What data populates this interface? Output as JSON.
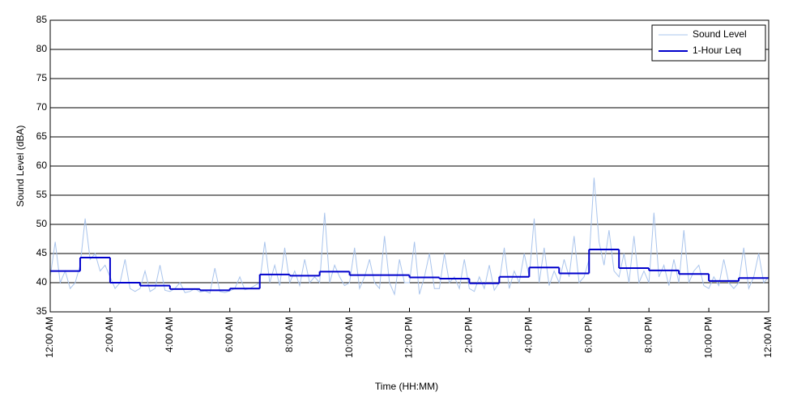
{
  "chart_data": {
    "type": "line",
    "xlabel": "Time (HH:MM)",
    "ylabel": "Sound Level (dBA)",
    "xlim": [
      0,
      1440
    ],
    "ylim": [
      35,
      85
    ],
    "yticks": [
      35,
      40,
      45,
      50,
      55,
      60,
      65,
      70,
      75,
      80,
      85
    ],
    "xticks": [
      {
        "value": 0,
        "label": "12:00 AM"
      },
      {
        "value": 120,
        "label": "2:00 AM"
      },
      {
        "value": 240,
        "label": "4:00 AM"
      },
      {
        "value": 360,
        "label": "6:00 AM"
      },
      {
        "value": 480,
        "label": "8:00 AM"
      },
      {
        "value": 600,
        "label": "10:00 AM"
      },
      {
        "value": 720,
        "label": "12:00 PM"
      },
      {
        "value": 840,
        "label": "2:00 PM"
      },
      {
        "value": 960,
        "label": "4:00 PM"
      },
      {
        "value": 1080,
        "label": "6:00 PM"
      },
      {
        "value": 1200,
        "label": "8:00 PM"
      },
      {
        "value": 1320,
        "label": "10:00 PM"
      },
      {
        "value": 1440,
        "label": "12:00 AM"
      }
    ],
    "grid": "y",
    "legend": "upper right",
    "series": [
      {
        "name": "Sound Level",
        "color": "#a9c4ec",
        "drawstyle": "default",
        "x": [
          0,
          10,
          20,
          30,
          40,
          50,
          60,
          70,
          80,
          90,
          100,
          110,
          120,
          130,
          140,
          150,
          160,
          170,
          180,
          190,
          200,
          210,
          220,
          230,
          240,
          250,
          260,
          270,
          280,
          290,
          300,
          310,
          320,
          330,
          340,
          350,
          360,
          370,
          380,
          390,
          400,
          410,
          420,
          430,
          440,
          450,
          460,
          470,
          480,
          490,
          500,
          510,
          520,
          530,
          540,
          550,
          560,
          570,
          580,
          590,
          600,
          610,
          620,
          630,
          640,
          650,
          660,
          670,
          680,
          690,
          700,
          710,
          720,
          730,
          740,
          750,
          760,
          770,
          780,
          790,
          800,
          810,
          820,
          830,
          840,
          850,
          860,
          870,
          880,
          890,
          900,
          910,
          920,
          930,
          940,
          950,
          960,
          970,
          980,
          990,
          1000,
          1010,
          1020,
          1030,
          1040,
          1050,
          1060,
          1070,
          1080,
          1090,
          1100,
          1110,
          1120,
          1130,
          1140,
          1150,
          1160,
          1170,
          1180,
          1190,
          1200,
          1210,
          1220,
          1230,
          1240,
          1250,
          1260,
          1270,
          1280,
          1290,
          1300,
          1310,
          1320,
          1330,
          1340,
          1350,
          1360,
          1370,
          1380,
          1390,
          1400,
          1410,
          1420,
          1430,
          1440
        ],
        "values": [
          41,
          47,
          40,
          42,
          39,
          40,
          43,
          51,
          44,
          45,
          42,
          43,
          41,
          39,
          40,
          44,
          39,
          38.5,
          39,
          42,
          38.5,
          39,
          43,
          38.7,
          38.5,
          39,
          40,
          38.3,
          38.5,
          39,
          38.4,
          38.6,
          38.2,
          42.5,
          38.5,
          38.3,
          38.6,
          39,
          41,
          38.8,
          39,
          39.5,
          40,
          47,
          40,
          43,
          39.5,
          46,
          40,
          42,
          39.5,
          44,
          40,
          41,
          40,
          52,
          40,
          43,
          41,
          39.5,
          40,
          46,
          39,
          41,
          44,
          40,
          39,
          48,
          40,
          38,
          44,
          40,
          40,
          47,
          38,
          41,
          45,
          39,
          39,
          45,
          40,
          41,
          39,
          44,
          39,
          38.5,
          41,
          39,
          43,
          38.7,
          40,
          46,
          39,
          42,
          40,
          45,
          41,
          51,
          40,
          46,
          39.5,
          42,
          40,
          44,
          41,
          48,
          40,
          41,
          44,
          58,
          47,
          43,
          49,
          42,
          41,
          45,
          40,
          48,
          40,
          42,
          40,
          52,
          41,
          43,
          39.5,
          44,
          40,
          49,
          40,
          42,
          43,
          39.5,
          39,
          41,
          39.5,
          44,
          40,
          39,
          40,
          46,
          39,
          41,
          45,
          40,
          41
        ]
      },
      {
        "name": "1-Hour Leq",
        "color": "#0000cc",
        "drawstyle": "steps-post",
        "x": [
          0,
          60,
          120,
          180,
          240,
          300,
          360,
          420,
          480,
          540,
          600,
          660,
          720,
          780,
          840,
          900,
          960,
          1020,
          1080,
          1140,
          1200,
          1260,
          1320,
          1380
        ],
        "values": [
          42,
          44.3,
          40,
          39.5,
          38.9,
          38.7,
          39,
          41.4,
          41.2,
          41.9,
          41.3,
          41.3,
          40.9,
          40.7,
          39.9,
          41,
          42.6,
          41.6,
          45.7,
          42.5,
          42.1,
          41.5,
          40.3,
          40.8
        ]
      }
    ]
  }
}
